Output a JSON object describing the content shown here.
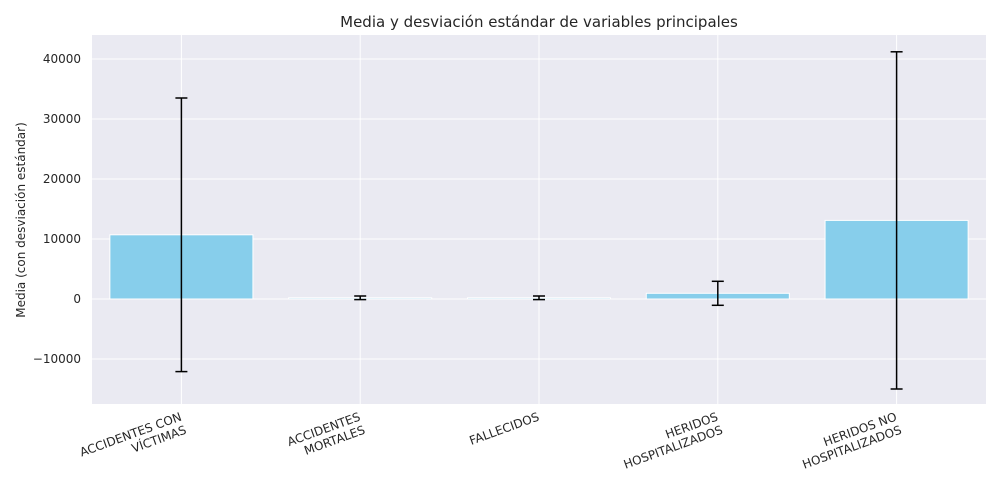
{
  "chart_data": {
    "type": "bar",
    "title": "Media y desviación estándar de variables principales",
    "xlabel": "",
    "ylabel": "Media (con desviación estándar)",
    "categories": [
      [
        "ACCIDENTES CON",
        "VÍCTIMAS"
      ],
      [
        "ACCIDENTES",
        "MORTALES"
      ],
      [
        "FALLECIDOS"
      ],
      [
        "HERIDOS",
        "HOSPITALIZADOS"
      ],
      [
        "HERIDOS NO",
        "HOSPITALIZADOS"
      ]
    ],
    "series": [
      {
        "values": [
          10700,
          200,
          200,
          950,
          13100
        ],
        "std": [
          22800,
          300,
          300,
          2000,
          28100
        ]
      }
    ],
    "ylim": [
      -17500,
      44000
    ],
    "yticks": [
      -10000,
      0,
      10000,
      20000,
      30000,
      40000
    ],
    "ytick_labels": [
      "−10000",
      "0",
      "10000",
      "20000",
      "30000",
      "40000"
    ],
    "grid": true,
    "colors": {
      "bar": "#87ceeb",
      "background": "#eaeaf2",
      "grid": "#ffffff",
      "error": "#000000"
    }
  }
}
